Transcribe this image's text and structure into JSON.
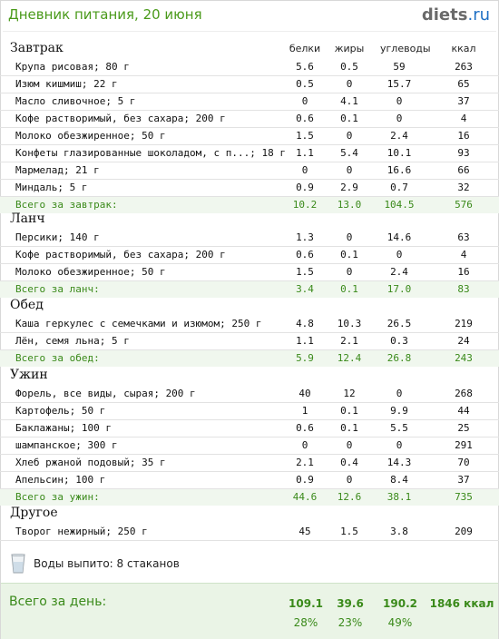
{
  "header": {
    "title": "Дневник питания, 20 июня",
    "logo_main": "diets",
    "logo_tld": ".ru"
  },
  "columns": {
    "protein": "белки",
    "fat": "жиры",
    "carbs": "углеводы",
    "kcal": "ккал"
  },
  "sections": [
    {
      "title": "Завтрак",
      "items": [
        {
          "name": "Крупа рисовая; 80 г",
          "p": "5.6",
          "f": "0.5",
          "c": "59",
          "k": "263"
        },
        {
          "name": "Изюм кишмиш; 22 г",
          "p": "0.5",
          "f": "0",
          "c": "15.7",
          "k": "65"
        },
        {
          "name": "Масло сливочное; 5 г",
          "p": "0",
          "f": "4.1",
          "c": "0",
          "k": "37"
        },
        {
          "name": "Кофе растворимый, без сахара; 200 г",
          "p": "0.6",
          "f": "0.1",
          "c": "0",
          "k": "4"
        },
        {
          "name": "Молоко обезжиренное; 50 г",
          "p": "1.5",
          "f": "0",
          "c": "2.4",
          "k": "16"
        },
        {
          "name": "Конфеты глазированные шоколадом, с п...; 18 г",
          "p": "1.1",
          "f": "5.4",
          "c": "10.1",
          "k": "93"
        },
        {
          "name": "Мармелад; 21 г",
          "p": "0",
          "f": "0",
          "c": "16.6",
          "k": "66"
        },
        {
          "name": "Миндаль; 5 г",
          "p": "0.9",
          "f": "2.9",
          "c": "0.7",
          "k": "32"
        }
      ],
      "total": {
        "label": "Всего за завтрак:",
        "p": "10.2",
        "f": "13.0",
        "c": "104.5",
        "k": "576"
      }
    },
    {
      "title": "Ланч",
      "items": [
        {
          "name": "Персики; 140 г",
          "p": "1.3",
          "f": "0",
          "c": "14.6",
          "k": "63"
        },
        {
          "name": "Кофе растворимый, без сахара; 200 г",
          "p": "0.6",
          "f": "0.1",
          "c": "0",
          "k": "4"
        },
        {
          "name": "Молоко обезжиренное; 50 г",
          "p": "1.5",
          "f": "0",
          "c": "2.4",
          "k": "16"
        }
      ],
      "total": {
        "label": "Всего за ланч:",
        "p": "3.4",
        "f": "0.1",
        "c": "17.0",
        "k": "83"
      }
    },
    {
      "title": "Обед",
      "items": [
        {
          "name": "Каша геркулес с семечками и изюмом; 250 г",
          "p": "4.8",
          "f": "10.3",
          "c": "26.5",
          "k": "219"
        },
        {
          "name": "Лён, семя льна; 5 г",
          "p": "1.1",
          "f": "2.1",
          "c": "0.3",
          "k": "24"
        }
      ],
      "total": {
        "label": "Всего за обед:",
        "p": "5.9",
        "f": "12.4",
        "c": "26.8",
        "k": "243"
      }
    },
    {
      "title": "Ужин",
      "items": [
        {
          "name": "Форель, все виды, сырая; 200 г",
          "p": "40",
          "f": "12",
          "c": "0",
          "k": "268"
        },
        {
          "name": "Картофель; 50 г",
          "p": "1",
          "f": "0.1",
          "c": "9.9",
          "k": "44"
        },
        {
          "name": "Баклажаны; 100 г",
          "p": "0.6",
          "f": "0.1",
          "c": "5.5",
          "k": "25"
        },
        {
          "name": "шампанское; 300 г",
          "p": "0",
          "f": "0",
          "c": "0",
          "k": "291"
        },
        {
          "name": "Хлеб ржаной подовый; 35 г",
          "p": "2.1",
          "f": "0.4",
          "c": "14.3",
          "k": "70"
        },
        {
          "name": "Апельсин; 100 г",
          "p": "0.9",
          "f": "0",
          "c": "8.4",
          "k": "37"
        }
      ],
      "total": {
        "label": "Всего за ужин:",
        "p": "44.6",
        "f": "12.6",
        "c": "38.1",
        "k": "735"
      }
    },
    {
      "title": "Другое",
      "items": [
        {
          "name": "Творог нежирный; 250 г",
          "p": "45",
          "f": "1.5",
          "c": "3.8",
          "k": "209"
        }
      ],
      "total": null
    }
  ],
  "water": {
    "text": "Воды выпито: 8 стаканов",
    "icon": "water-glass-icon"
  },
  "day_total": {
    "label": "Всего за день:",
    "protein": "109.1",
    "fat": "39.6",
    "carbs": "190.2",
    "kcal": "1846 ккал",
    "protein_pct": "28%",
    "fat_pct": "23%",
    "carbs_pct": "49%"
  },
  "colors": {
    "title_green": "#4a9a1a",
    "total_green": "#3a8a1a",
    "total_bg": "#f0f7ee",
    "day_bg": "#eaf4e6",
    "logo_blue": "#1e6fc4"
  }
}
